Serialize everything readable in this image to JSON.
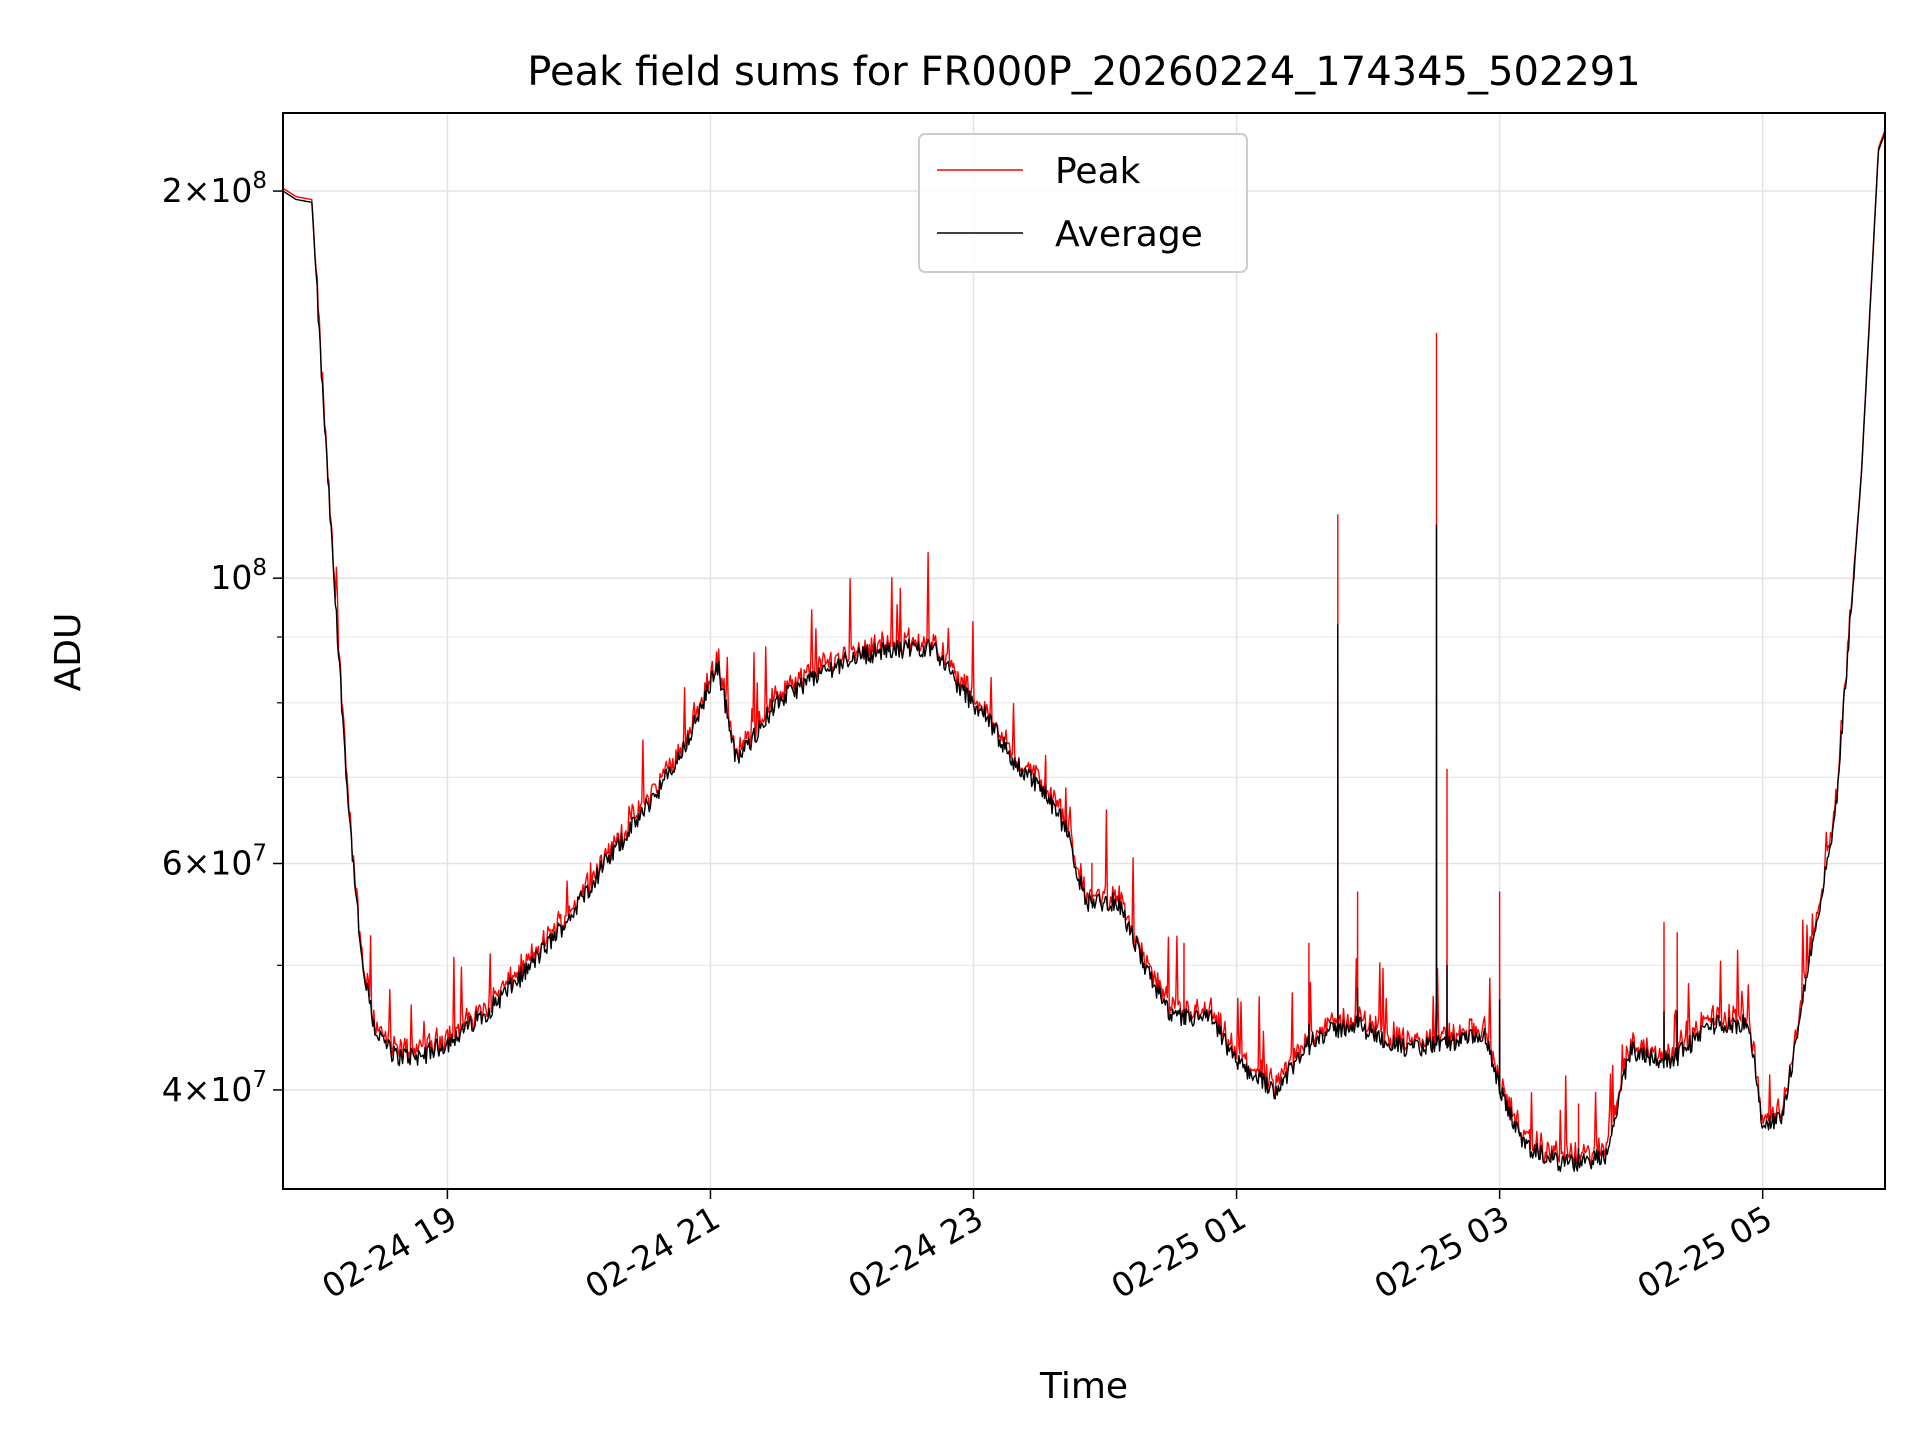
{
  "chart_data": {
    "type": "line",
    "title": "Peak field sums for FR000P_20260224_174345_502291",
    "xlabel": "Time",
    "ylabel": "ADU",
    "yscale": "log",
    "ylim": [
      33500000,
      230000000
    ],
    "xlim_hours": [
      17.75,
      5.93
    ],
    "grid": true,
    "legend_position": "upper center",
    "x_tick_labels": [
      "02-24 19",
      "02-24 21",
      "02-24 23",
      "02-25 01",
      "02-25 03",
      "02-25 05"
    ],
    "x_tick_hours": [
      19,
      21,
      23,
      25,
      27,
      29
    ],
    "y_major_ticks": [
      {
        "value": 40000000,
        "mant": "4",
        "exp": "7"
      },
      {
        "value": 60000000,
        "mant": "6",
        "exp": "7"
      },
      {
        "value": 100000000,
        "mant": "",
        "exp": "8"
      },
      {
        "value": 200000000,
        "mant": "2",
        "exp": "8"
      }
    ],
    "y_minor_ticks": [
      50000000,
      70000000,
      80000000,
      90000000
    ],
    "series": [
      {
        "name": "Peak",
        "color": "#ff0000"
      },
      {
        "name": "Average",
        "color": "#000000"
      }
    ],
    "average_profile": [
      [
        17.75,
        200000000
      ],
      [
        17.85,
        197000000
      ],
      [
        17.97,
        196000000
      ],
      [
        18.05,
        140000000
      ],
      [
        18.15,
        95000000
      ],
      [
        18.25,
        66000000
      ],
      [
        18.35,
        50000000
      ],
      [
        18.45,
        44500000
      ],
      [
        18.6,
        42500000
      ],
      [
        18.8,
        42500000
      ],
      [
        19.0,
        43500000
      ],
      [
        19.3,
        46000000
      ],
      [
        19.6,
        49500000
      ],
      [
        19.9,
        54000000
      ],
      [
        20.2,
        60000000
      ],
      [
        20.45,
        65000000
      ],
      [
        20.75,
        72000000
      ],
      [
        20.95,
        80000000
      ],
      [
        21.05,
        86000000
      ],
      [
        21.2,
        72000000
      ],
      [
        21.5,
        80000000
      ],
      [
        21.8,
        84000000
      ],
      [
        22.1,
        87000000
      ],
      [
        22.4,
        88000000
      ],
      [
        22.7,
        88500000
      ],
      [
        22.9,
        82000000
      ],
      [
        23.1,
        78000000
      ],
      [
        23.3,
        72000000
      ],
      [
        23.5,
        69000000
      ],
      [
        23.7,
        64000000
      ],
      [
        23.85,
        56000000
      ],
      [
        24.1,
        56000000
      ],
      [
        24.3,
        50000000
      ],
      [
        24.5,
        45500000
      ],
      [
        24.8,
        45500000
      ],
      [
        25.0,
        42000000
      ],
      [
        25.3,
        40000000
      ],
      [
        25.6,
        44000000
      ],
      [
        25.9,
        45000000
      ],
      [
        26.3,
        43000000
      ],
      [
        26.6,
        43500000
      ],
      [
        26.9,
        44000000
      ],
      [
        27.0,
        40000000
      ],
      [
        27.2,
        36000000
      ],
      [
        27.5,
        35000000
      ],
      [
        27.8,
        35500000
      ],
      [
        28.0,
        43000000
      ],
      [
        28.3,
        42000000
      ],
      [
        28.6,
        45000000
      ],
      [
        28.9,
        45000000
      ],
      [
        29.0,
        37500000
      ],
      [
        29.15,
        38000000
      ],
      [
        29.35,
        50000000
      ],
      [
        29.55,
        65000000
      ],
      [
        29.75,
        120000000
      ],
      [
        29.88,
        215000000
      ],
      [
        29.93,
        222000000
      ]
    ],
    "peak_spikes": [
      {
        "hour": 25.77,
        "peak": 112000000,
        "average": 92000000
      },
      {
        "hour": 26.52,
        "peak": 155000000,
        "average": 110000000
      },
      {
        "hour": 26.6,
        "peak": 71000000,
        "average": 50000000
      },
      {
        "hour": 25.92,
        "peak": 57000000,
        "average": 48000000
      },
      {
        "hour": 27.0,
        "peak": 57000000,
        "average": 47000000
      },
      {
        "hour": 24.6,
        "peak": 52000000,
        "average": 45000000
      },
      {
        "hour": 25.55,
        "peak": 52000000,
        "average": 45000000
      },
      {
        "hour": 28.25,
        "peak": 54000000,
        "average": 46000000
      },
      {
        "hour": 28.35,
        "peak": 53000000,
        "average": 46000000
      },
      {
        "hour": 27.6,
        "peak": 39000000,
        "average": 36000000
      },
      {
        "hour": 23.55,
        "peak": 72000000,
        "average": 69000000
      },
      {
        "hour": 23.9,
        "peak": 60000000,
        "average": 56000000
      }
    ]
  }
}
